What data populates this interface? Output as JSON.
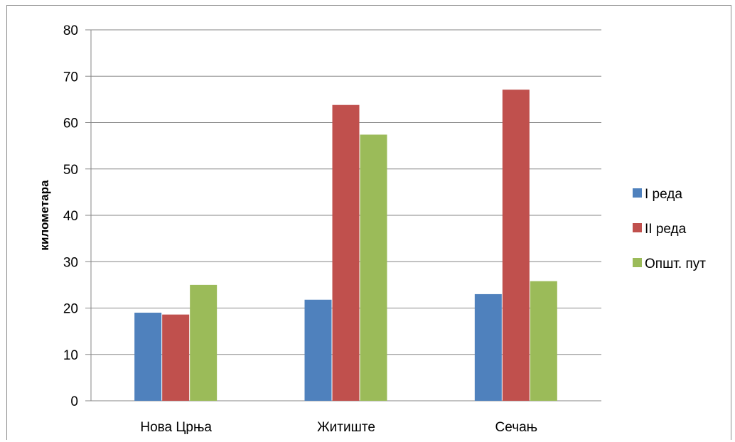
{
  "chart_data": {
    "type": "bar",
    "title": "",
    "xlabel": "",
    "ylabel": "километара",
    "ylim": [
      0,
      80
    ],
    "yticks": [
      0,
      10,
      20,
      30,
      40,
      50,
      60,
      70,
      80
    ],
    "grid": true,
    "legend_position": "right",
    "categories": [
      "Нова Црња",
      "Житиште",
      "Сечањ"
    ],
    "series": [
      {
        "name": "I реда",
        "color": "#4f81bd",
        "values": [
          19,
          21.8,
          23
        ]
      },
      {
        "name": "II реда",
        "color": "#c0504d",
        "values": [
          18.6,
          63.8,
          67.1
        ]
      },
      {
        "name": "Општ. пут",
        "color": "#9bbb59",
        "values": [
          25,
          57.4,
          25.8
        ]
      }
    ]
  }
}
